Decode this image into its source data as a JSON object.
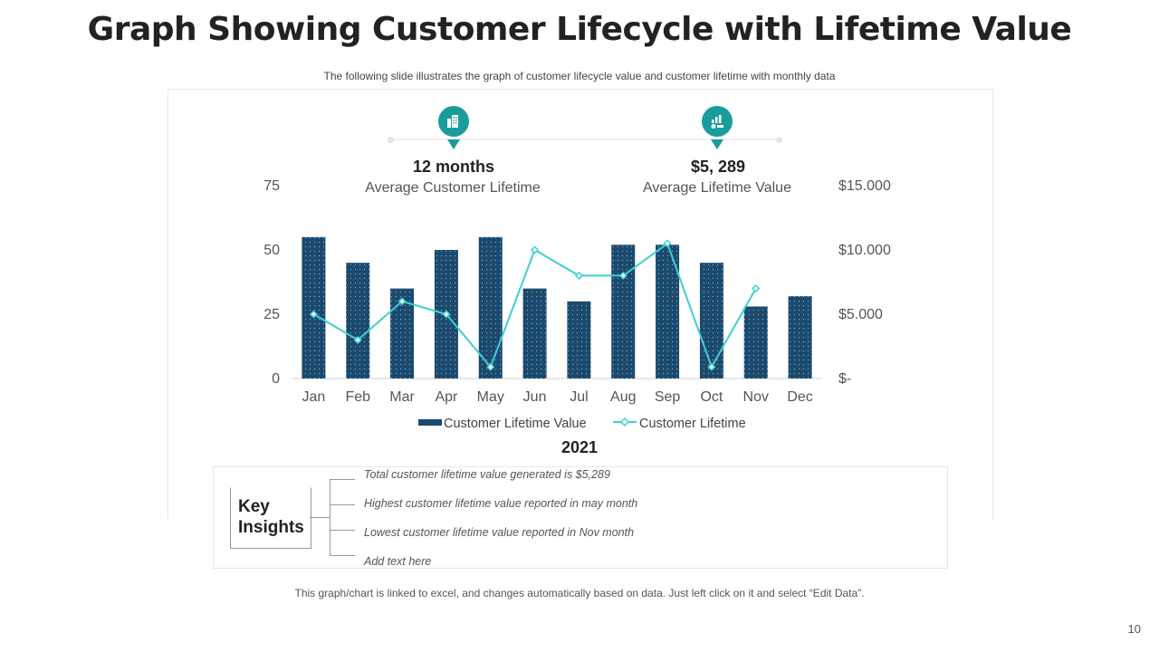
{
  "title": "Graph Showing Customer Lifecycle with Lifetime Value",
  "subtitle": "The following  slide illustrates the graph of customer lifecycle value  and customer lifetime with monthly data",
  "kpis": [
    {
      "value": "12 months",
      "label": "Average Customer Lifetime",
      "icon": "building-chart-icon"
    },
    {
      "value": "$5, 289",
      "label": "Average Lifetime Value",
      "icon": "money-chart-icon"
    }
  ],
  "chart_data": {
    "type": "bar",
    "title": "",
    "xlabel": "2021",
    "categories": [
      "Jan",
      "Feb",
      "Mar",
      "Apr",
      "May",
      "Jun",
      "Jul",
      "Aug",
      "Sep",
      "Oct",
      "Nov",
      "Dec"
    ],
    "series": [
      {
        "name": "Customer Lifetime Value",
        "type": "bar",
        "axis": "left",
        "values": [
          55,
          45,
          35,
          50,
          55,
          35,
          30,
          52,
          52,
          45,
          28,
          32
        ]
      },
      {
        "name": "Customer Lifetime",
        "type": "line",
        "axis": "right",
        "values": [
          5000,
          3000,
          6000,
          5000,
          900,
          10000,
          8000,
          8000,
          10500,
          900,
          7000,
          null
        ]
      }
    ],
    "ylim_left": [
      0,
      75
    ],
    "yticks_left": [
      "0",
      "25",
      "50",
      "75"
    ],
    "ylim_right": [
      0,
      15000
    ],
    "yticks_right": [
      "$-",
      "$5.000",
      "$10.000",
      "$15.000"
    ],
    "legend_position": "bottom",
    "colors": {
      "bar": "#1b4a6e",
      "line": "#3fd0d0"
    }
  },
  "insights": {
    "title": "Key Insights",
    "items": [
      "Total customer lifetime value  generated  is $5,289",
      "Highest customer lifetime value  reported  in may month",
      "Lowest  customer lifetime value  reported  in Nov month",
      "Add text here"
    ]
  },
  "footnote": "This graph/chart is linked to excel, and changes automatically based on data. Just left click on it and select “Edit Data”.",
  "page_number": "10"
}
